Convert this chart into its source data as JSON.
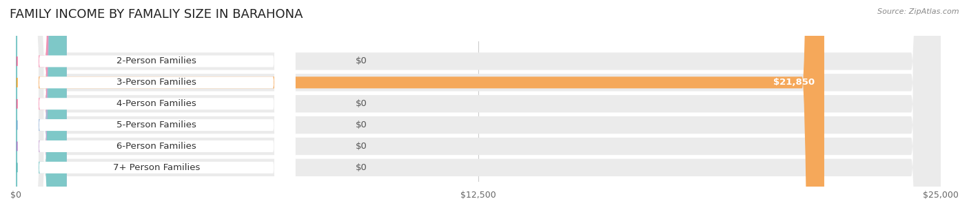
{
  "title": "FAMILY INCOME BY FAMALIY SIZE IN BARAHONA",
  "source": "Source: ZipAtlas.com",
  "categories": [
    "2-Person Families",
    "3-Person Families",
    "4-Person Families",
    "5-Person Families",
    "6-Person Families",
    "7+ Person Families"
  ],
  "values": [
    0,
    21850,
    0,
    0,
    0,
    0
  ],
  "bar_colors": [
    "#f48fb1",
    "#f5a85a",
    "#f48fb1",
    "#9db8d9",
    "#c9a8d4",
    "#7ec8c8"
  ],
  "dot_colors": [
    "#f06292",
    "#f5a023",
    "#f06292",
    "#7bafd4",
    "#b07ec8",
    "#5bb8b8"
  ],
  "bg_colors": [
    "#f0f0f0",
    "#f0f0f0",
    "#f0f0f0",
    "#f0f0f0",
    "#f0f0f0",
    "#f0f0f0"
  ],
  "xlim": [
    0,
    25000
  ],
  "xticks": [
    0,
    12500,
    25000
  ],
  "xticklabels": [
    "$0",
    "$12,500",
    "$25,000"
  ],
  "value_labels": [
    "$0",
    "$21,850",
    "$0",
    "$0",
    "$0",
    "$0"
  ],
  "bar_height": 0.55,
  "background_color": "#ffffff",
  "title_fontsize": 13,
  "label_fontsize": 9.5,
  "tick_fontsize": 9
}
